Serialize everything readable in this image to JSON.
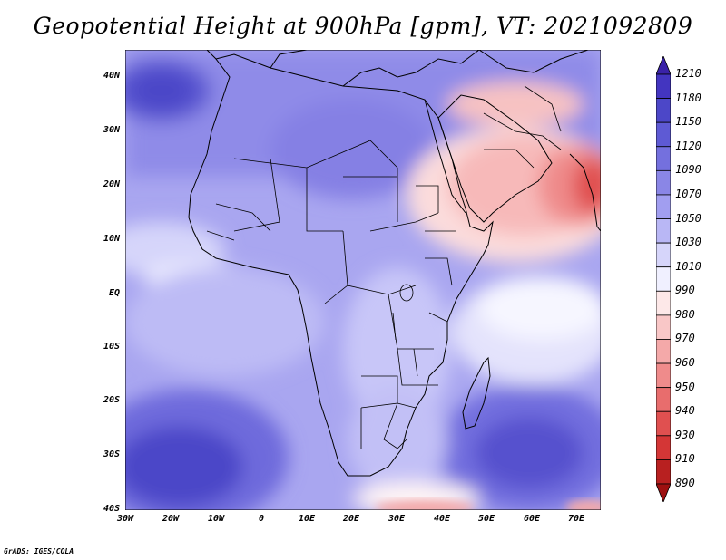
{
  "title": "Geopotential Height at 900hPa [gpm], VT: 2021092809",
  "map": {
    "variable": "Geopotential Height",
    "level": "900hPa",
    "units": "gpm",
    "valid_time": "2021092809",
    "lat_labels": [
      "40N",
      "30N",
      "20N",
      "10N",
      "EQ",
      "10S",
      "20S",
      "30S",
      "40S"
    ],
    "lon_labels": [
      "30W",
      "20W",
      "10W",
      "0",
      "10E",
      "20E",
      "30E",
      "40E",
      "50E",
      "60E",
      "70E"
    ]
  },
  "colorbar": {
    "levels": [
      "1210",
      "1180",
      "1150",
      "1120",
      "1090",
      "1070",
      "1050",
      "1030",
      "1010",
      "990",
      "980",
      "970",
      "960",
      "950",
      "940",
      "930",
      "910",
      "890"
    ],
    "colors": [
      "#3a22a8",
      "#4335c0",
      "#4c47c8",
      "#5e5ad4",
      "#7470de",
      "#8a86e6",
      "#a19ef0",
      "#b9b7f5",
      "#d6d5fa",
      "#f0f0ff",
      "#fde8e8",
      "#f9c7c7",
      "#f4a9a9",
      "#ef8b8b",
      "#e86d6d",
      "#e05050",
      "#d43636",
      "#b82020",
      "#9e1010"
    ]
  },
  "footer": "GrADS: IGES/COLA"
}
